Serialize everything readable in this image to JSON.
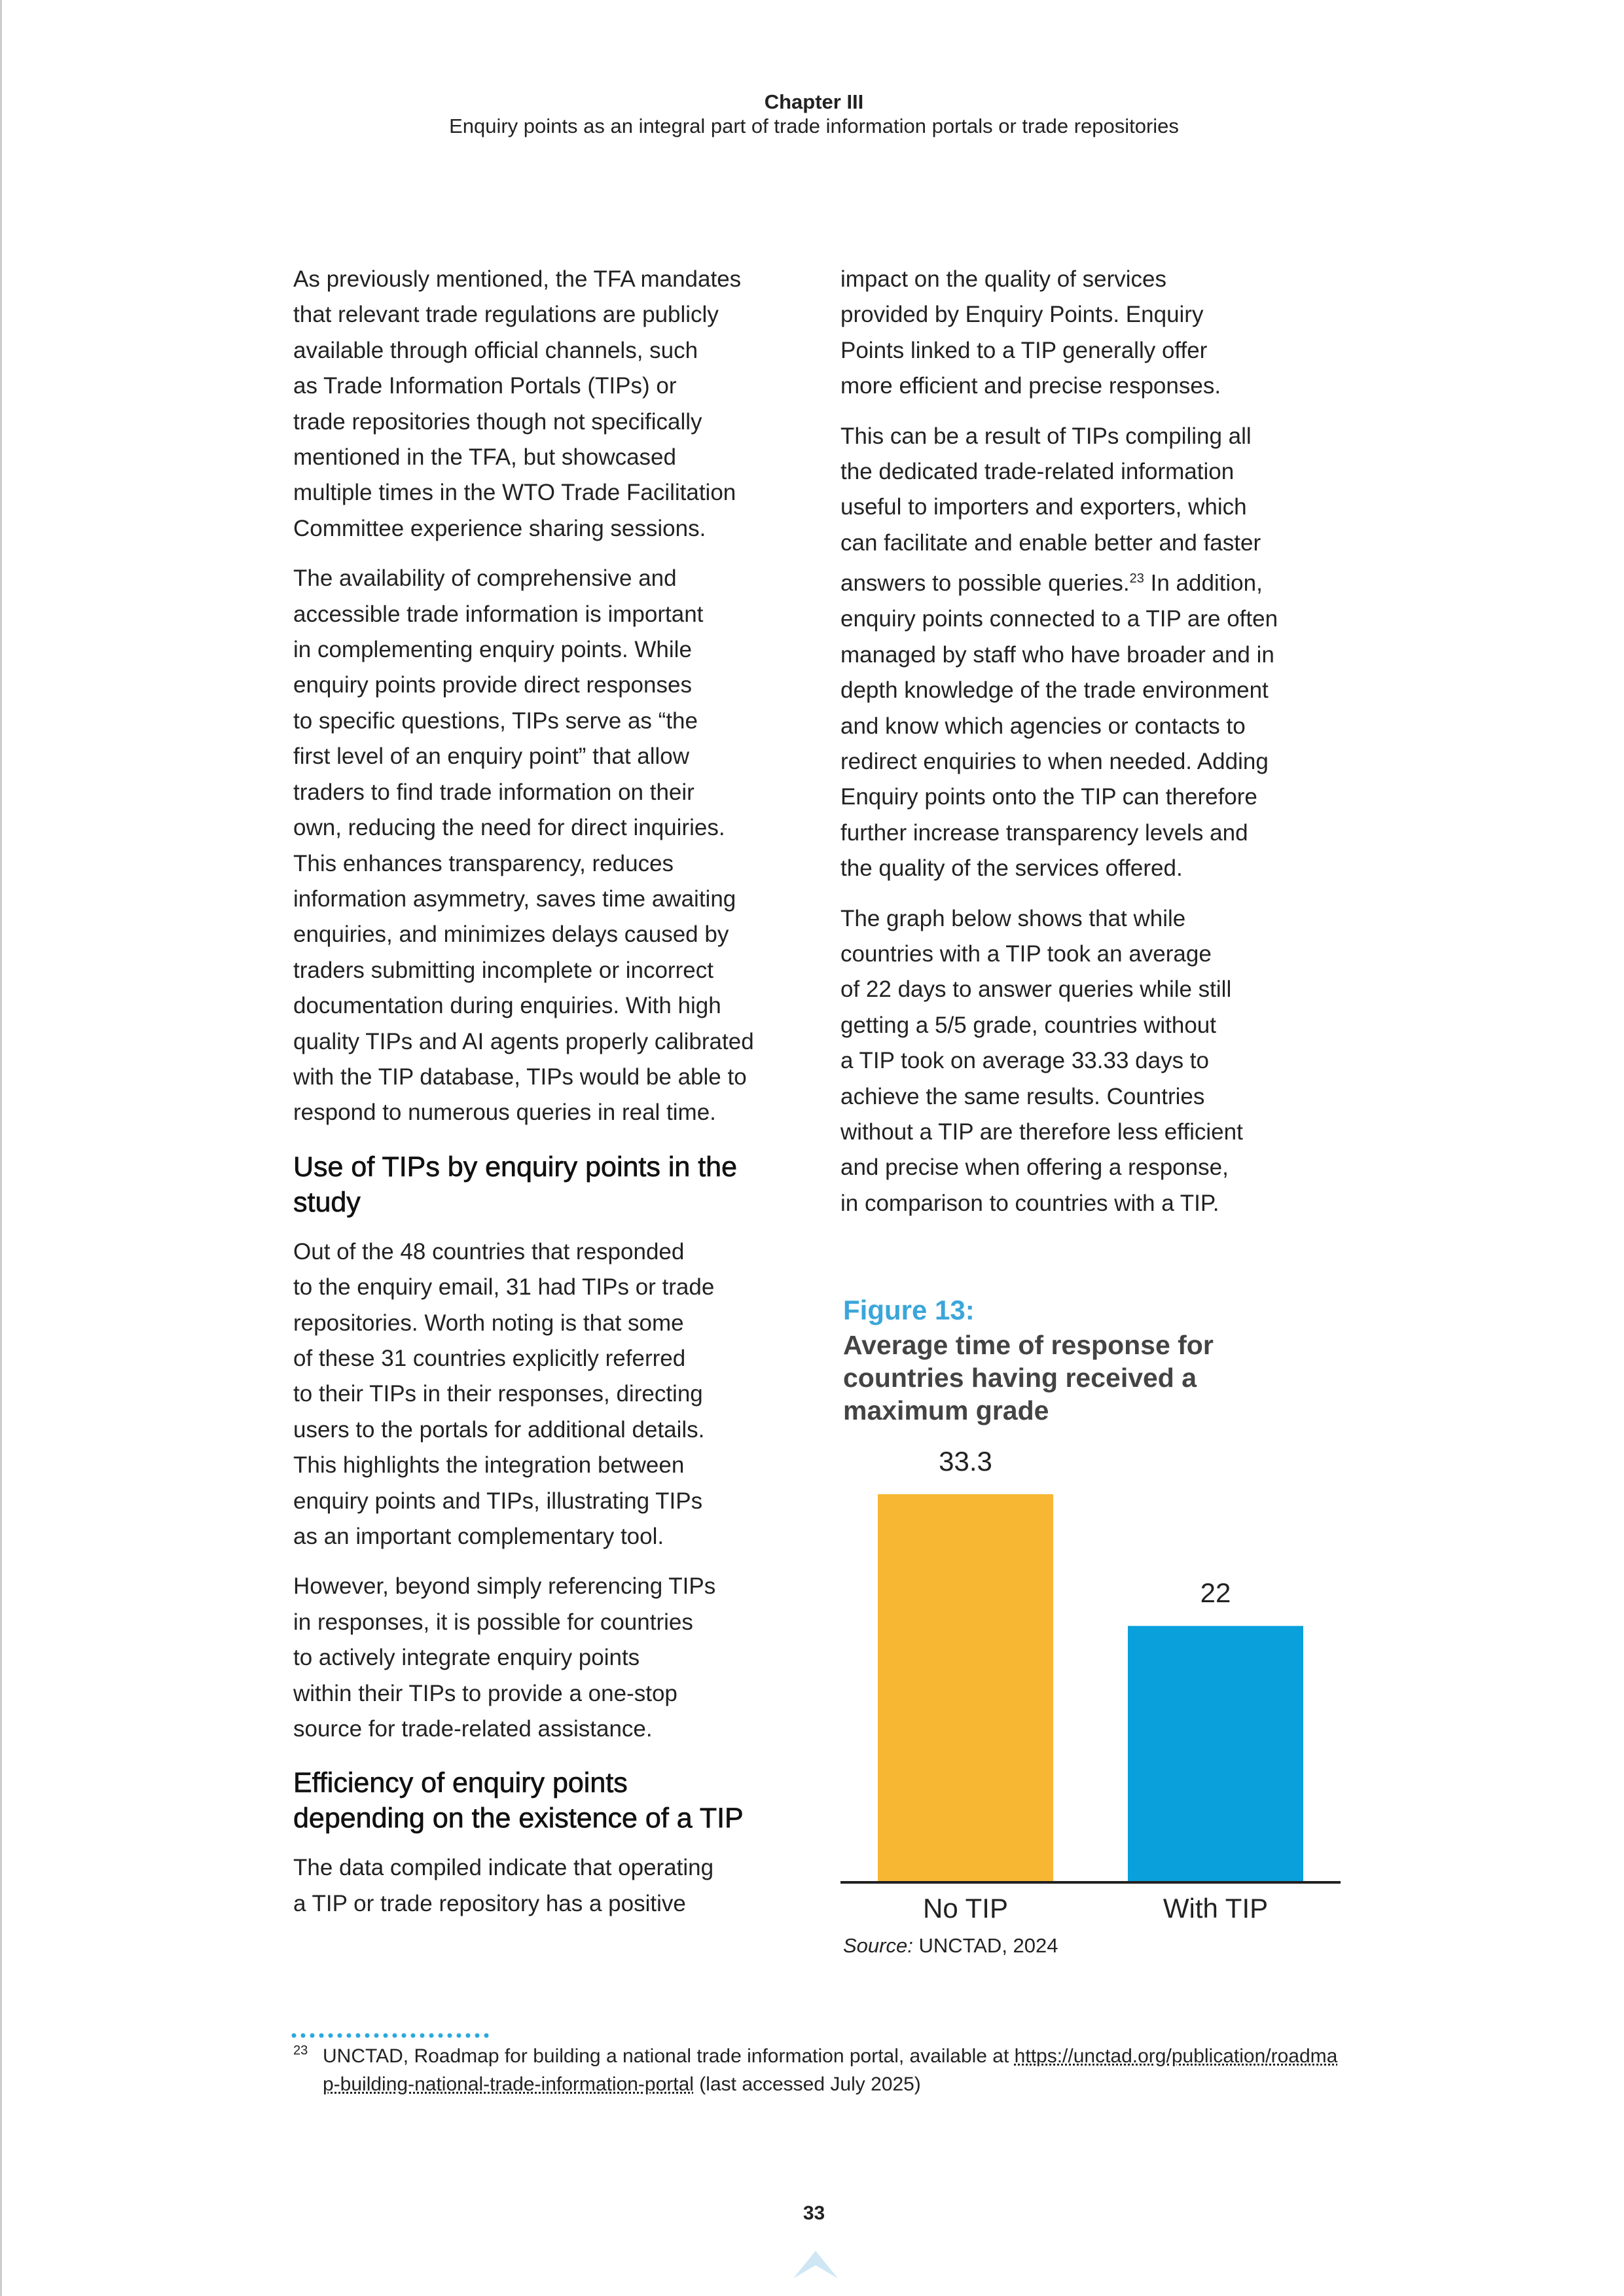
{
  "header": {
    "chapter": "Chapter III",
    "subtitle": "Enquiry points as an integral part of trade information portals or trade repositories"
  },
  "left_column": [
    {
      "paragraph": [
        "As previously mentioned, the TFA mandates",
        "that relevant trade regulations are publicly",
        "available through official channels, such",
        "as Trade Information Portals (TIPs) or",
        "trade repositories though not specifically",
        "mentioned in the TFA, but showcased",
        "multiple times in the WTO Trade Facilitation",
        "Committee experience sharing sessions."
      ]
    },
    {
      "paragraph": [
        "The availability of comprehensive and",
        "accessible trade information is important",
        "in complementing enquiry points. While",
        "enquiry points provide direct responses",
        "to specific questions, TIPs serve as “the",
        "first level of an enquiry point” that allow",
        "traders to find trade information on their",
        "own, reducing the need for direct inquiries.",
        "This enhances transparency, reduces",
        "information asymmetry, saves time awaiting",
        "enquiries, and minimizes delays caused by",
        "traders submitting incomplete or incorrect",
        "documentation during enquiries. With high",
        "quality TIPs and AI agents properly calibrated",
        "with the TIP database, TIPs would be able to",
        "respond to numerous queries in real time."
      ]
    },
    {
      "heading": [
        "Use of TIPs by enquiry points in the",
        "study"
      ]
    },
    {
      "paragraph": [
        "Out of the 48 countries that responded",
        "to the enquiry email, 31 had TIPs or trade",
        "repositories. Worth noting is that some",
        "of these 31 countries explicitly referred",
        "to their TIPs in their responses, directing",
        "users to the portals for additional details.",
        "This highlights the integration between",
        "enquiry points and TIPs, illustrating TIPs",
        "as an important complementary tool."
      ]
    },
    {
      "paragraph": [
        "However, beyond simply referencing TIPs",
        "in responses, it is possible for countries",
        "to actively integrate enquiry points",
        "within their TIPs to provide a one-stop",
        "source for trade-related assistance."
      ]
    },
    {
      "heading": [
        "Efficiency of enquiry points",
        "depending on the existence of a TIP"
      ]
    },
    {
      "paragraph": [
        "The data compiled indicate that operating",
        "a TIP or trade repository has a positive"
      ]
    }
  ],
  "right_column": [
    {
      "paragraph": [
        "impact on the quality of services",
        "provided by Enquiry Points. Enquiry",
        "Points linked to a TIP generally offer",
        "more efficient and precise responses."
      ]
    },
    {
      "paragraph": [
        "This can be a result of TIPs compiling all",
        "the dedicated trade-related information",
        "useful to importers and exporters, which",
        "can facilitate and enable better and faster",
        {
          "text": "answers to possible queries.",
          "sup": "23",
          "after": " In addition,"
        },
        "enquiry points connected to a TIP are often",
        "managed by staff who have broader and in",
        "depth knowledge of the trade environment",
        "and know which agencies or contacts to",
        "redirect enquiries to when needed. Adding",
        "Enquiry points onto the TIP can therefore",
        "further increase transparency levels and",
        "the quality of the services offered."
      ]
    },
    {
      "paragraph": [
        "The graph below shows that while",
        "countries with a TIP took an average",
        "of 22 days to answer queries while still",
        "getting a 5/5 grade, countries without",
        "a TIP took on average 33.33 days to",
        "achieve the same results. Countries",
        "without a TIP are therefore less efficient",
        "and precise when offering a response,",
        "in comparison to countries with a TIP."
      ]
    }
  ],
  "figure": {
    "label": "Figure 13:",
    "source_label": "Source:",
    "source": " UNCTAD, 2024"
  },
  "chart_data": {
    "type": "bar",
    "title": "Average time of response for countries having received a maximum grade",
    "categories": [
      "No TIP",
      "With TIP"
    ],
    "values": [
      33.3,
      22
    ],
    "colors": [
      "#f8b733",
      "#0aa0dc"
    ]
  },
  "footnote": {
    "number": "23",
    "text": "UNCTAD, Roadmap for building a national trade information portal, available at ",
    "link": "https://unctad.org/publication/roadmap-building-national-trade-information-portal",
    "after": " (last accessed July 2025)"
  },
  "page_number": "33"
}
